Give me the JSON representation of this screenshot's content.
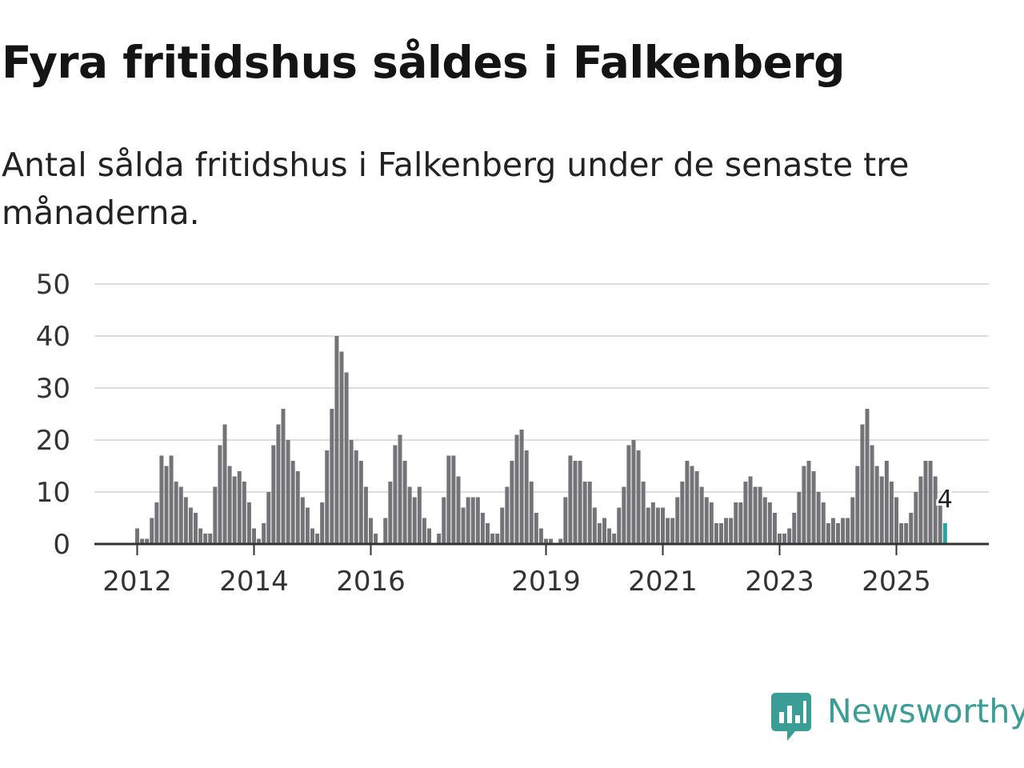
{
  "title": "Fyra fritidshus såldes i Falkenberg",
  "subtitle": "Antal sålda fritidshus i Falkenberg under de senaste tre månaderna.",
  "brand": {
    "name": "Newsworthy",
    "color": "#3a9e97"
  },
  "colors": {
    "bar": "#747378",
    "highlight": "#2aa3a0",
    "grid": "#dddddd",
    "axis": "#333333",
    "text": "#333333"
  },
  "chart_data": {
    "type": "bar",
    "title": "Fyra fritidshus såldes i Falkenberg",
    "xlabel": "",
    "ylabel": "",
    "ylim": [
      0,
      50
    ],
    "yticks": [
      0,
      10,
      20,
      30,
      40,
      50
    ],
    "xticks": [
      "2012",
      "2014",
      "2016",
      "2019",
      "2021",
      "2023",
      "2025"
    ],
    "grid": true,
    "start": "2012-01",
    "highlight_last": true,
    "annotation": "4",
    "values": [
      3,
      1,
      1,
      5,
      8,
      17,
      15,
      17,
      12,
      11,
      9,
      7,
      6,
      3,
      2,
      2,
      11,
      19,
      23,
      15,
      13,
      14,
      12,
      8,
      3,
      1,
      4,
      10,
      19,
      23,
      26,
      20,
      16,
      14,
      9,
      7,
      3,
      2,
      8,
      18,
      26,
      40,
      37,
      33,
      20,
      18,
      16,
      11,
      5,
      2,
      0,
      5,
      12,
      19,
      21,
      16,
      11,
      9,
      11,
      5,
      3,
      0,
      2,
      9,
      17,
      17,
      13,
      7,
      9,
      9,
      9,
      6,
      4,
      2,
      2,
      7,
      11,
      16,
      21,
      22,
      18,
      12,
      6,
      3,
      1,
      1,
      0,
      1,
      9,
      17,
      16,
      16,
      12,
      12,
      7,
      4,
      5,
      3,
      2,
      7,
      11,
      19,
      20,
      18,
      12,
      7,
      8,
      7,
      7,
      5,
      5,
      9,
      12,
      16,
      15,
      14,
      11,
      9,
      8,
      4,
      4,
      5,
      5,
      8,
      8,
      12,
      13,
      11,
      11,
      9,
      8,
      6,
      2,
      2,
      3,
      6,
      10,
      15,
      16,
      14,
      10,
      8,
      4,
      5,
      4,
      5,
      5,
      9,
      15,
      23,
      26,
      19,
      15,
      13,
      16,
      12,
      9,
      4,
      4,
      6,
      10,
      13,
      16,
      16,
      13,
      9,
      4
    ]
  }
}
